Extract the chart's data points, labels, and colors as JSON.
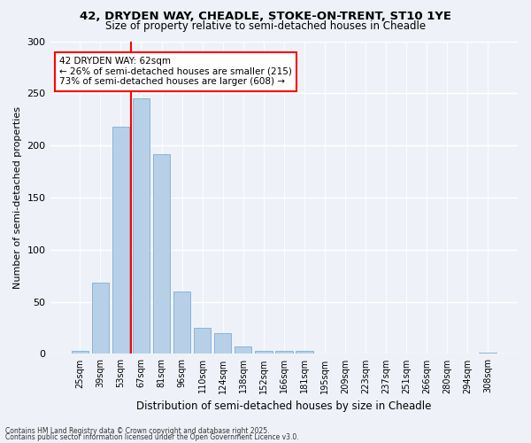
{
  "title1": "42, DRYDEN WAY, CHEADLE, STOKE-ON-TRENT, ST10 1YE",
  "title2": "Size of property relative to semi-detached houses in Cheadle",
  "xlabel": "Distribution of semi-detached houses by size in Cheadle",
  "ylabel": "Number of semi-detached properties",
  "categories": [
    "25sqm",
    "39sqm",
    "53sqm",
    "67sqm",
    "81sqm",
    "96sqm",
    "110sqm",
    "124sqm",
    "138sqm",
    "152sqm",
    "166sqm",
    "181sqm",
    "195sqm",
    "209sqm",
    "223sqm",
    "237sqm",
    "251sqm",
    "266sqm",
    "280sqm",
    "294sqm",
    "308sqm"
  ],
  "values": [
    3,
    68,
    218,
    245,
    192,
    60,
    25,
    20,
    7,
    3,
    3,
    3,
    0,
    0,
    0,
    0,
    0,
    0,
    0,
    0,
    1
  ],
  "bar_color": "#b8cfe8",
  "bar_edge_color": "#7aafd4",
  "vline_x": 2.5,
  "vline_color": "red",
  "annotation_box_text": "42 DRYDEN WAY: 62sqm\n← 26% of semi-detached houses are smaller (215)\n73% of semi-detached houses are larger (608) →",
  "annotation_box_color": "red",
  "ylim": [
    0,
    300
  ],
  "yticks": [
    0,
    50,
    100,
    150,
    200,
    250,
    300
  ],
  "background_color": "#eef2f8",
  "footer1": "Contains HM Land Registry data © Crown copyright and database right 2025.",
  "footer2": "Contains public sector information licensed under the Open Government Licence v3.0."
}
